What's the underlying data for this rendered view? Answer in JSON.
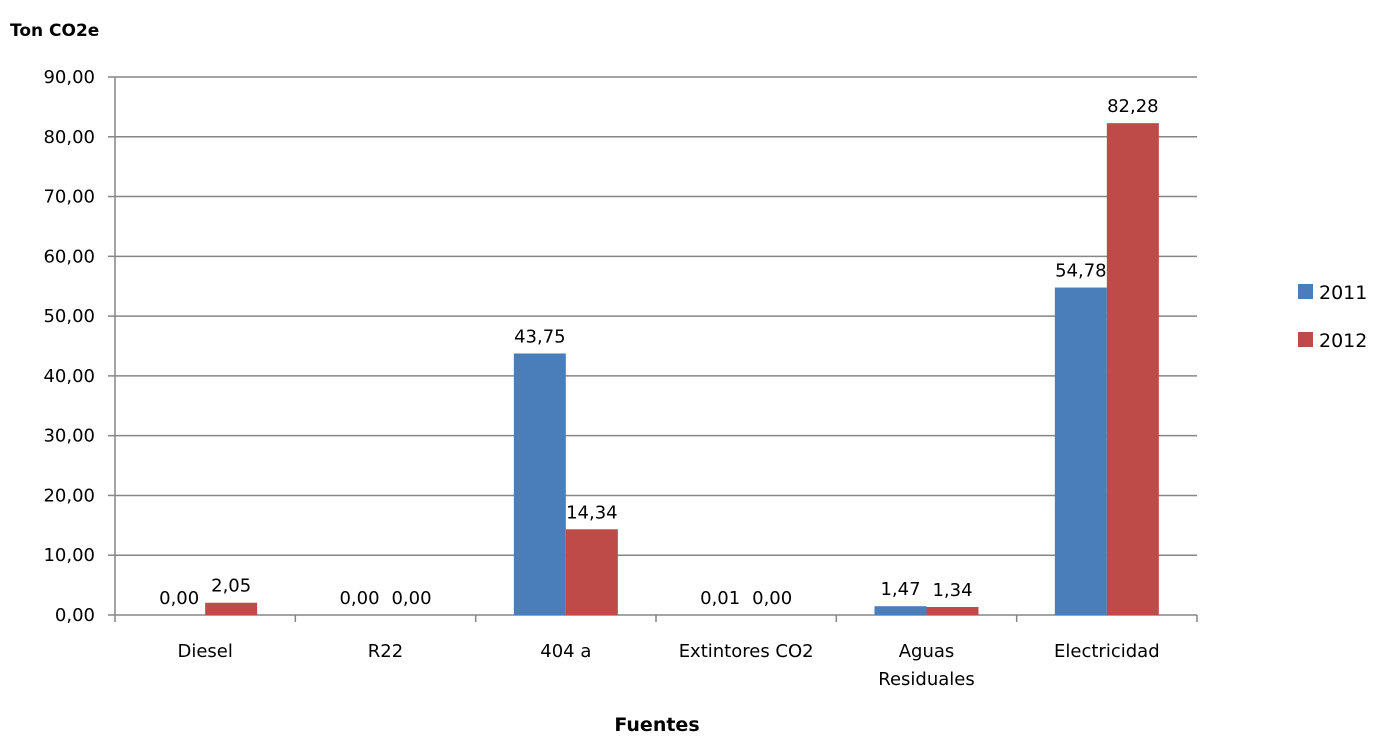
{
  "chart_data": {
    "type": "bar",
    "title": "",
    "ylabel": "Ton CO2e",
    "xlabel": "Fuentes",
    "ylim": [
      0,
      90
    ],
    "yticks": [
      0,
      10,
      20,
      30,
      40,
      50,
      60,
      70,
      80,
      90
    ],
    "ytick_labels": [
      "0,00",
      "10,00",
      "20,00",
      "30,00",
      "40,00",
      "50,00",
      "60,00",
      "70,00",
      "80,00",
      "90,00"
    ],
    "grid": true,
    "legend_position": "right",
    "categories": [
      [
        "Diesel"
      ],
      [
        "R22"
      ],
      [
        "404 a"
      ],
      [
        "Extintores CO2"
      ],
      [
        "Aguas",
        "Residuales"
      ],
      [
        "Electricidad"
      ]
    ],
    "series": [
      {
        "name": "2011",
        "color": "#4A7EBB",
        "values": [
          0.0,
          0.0,
          43.75,
          0.01,
          1.47,
          54.78
        ],
        "labels": [
          "0,00",
          "0,00",
          "43,75",
          "0,01",
          "1,47",
          "54,78"
        ]
      },
      {
        "name": "2012",
        "color": "#BE4B48",
        "values": [
          2.05,
          0.0,
          14.34,
          0.0,
          1.34,
          82.28
        ],
        "labels": [
          "2,05",
          "0,00",
          "14,34",
          "0,00",
          "1,34",
          "82,28"
        ]
      }
    ]
  }
}
